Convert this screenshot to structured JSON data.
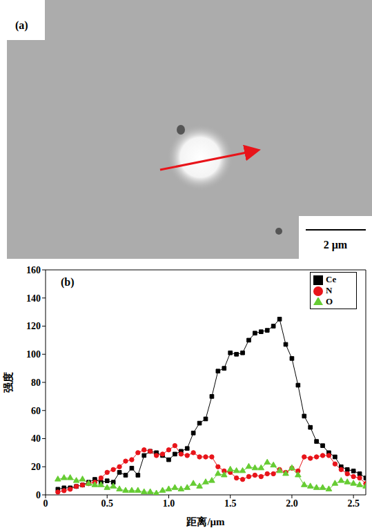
{
  "image": {
    "label": "(a)",
    "scale_bar": "2 μm"
  },
  "chart_data": {
    "type": "line",
    "panel_label": "(b)",
    "x_label": "距离/μm",
    "y_label": "强度",
    "x": [
      0.1,
      0.15,
      0.2,
      0.25,
      0.3,
      0.35,
      0.4,
      0.45,
      0.5,
      0.55,
      0.6,
      0.65,
      0.7,
      0.75,
      0.8,
      0.85,
      0.9,
      0.95,
      1.0,
      1.05,
      1.1,
      1.15,
      1.2,
      1.25,
      1.3,
      1.35,
      1.4,
      1.45,
      1.5,
      1.55,
      1.6,
      1.65,
      1.7,
      1.75,
      1.8,
      1.85,
      1.9,
      1.95,
      2.0,
      2.05,
      2.1,
      2.15,
      2.2,
      2.25,
      2.3,
      2.35,
      2.4,
      2.45,
      2.5,
      2.55,
      2.6
    ],
    "series": [
      {
        "name": "Ce",
        "color": "#000000",
        "marker": "square",
        "values": [
          4,
          5,
          5,
          6,
          7,
          9,
          11,
          9,
          10,
          9,
          16,
          14,
          19,
          14,
          28,
          31,
          30,
          28,
          25,
          29,
          31,
          33,
          44,
          51,
          54,
          70,
          88,
          90,
          101,
          100,
          101,
          110,
          115,
          116,
          117,
          120,
          125,
          107,
          97,
          78,
          56,
          48,
          38,
          35,
          30,
          27,
          20,
          18,
          17,
          15,
          12
        ]
      },
      {
        "name": "N",
        "color": "#e8141a",
        "marker": "circle",
        "values": [
          2,
          3,
          4,
          6,
          7,
          8,
          9,
          12,
          16,
          18,
          20,
          24,
          25,
          30,
          32,
          31,
          28,
          29,
          32,
          35,
          29,
          28,
          30,
          27,
          27,
          27,
          20,
          17,
          16,
          12,
          11,
          13,
          14,
          13,
          15,
          15,
          18,
          16,
          19,
          17,
          27,
          26,
          27,
          28,
          28,
          22,
          18,
          15,
          13,
          12,
          8
        ]
      },
      {
        "name": "O",
        "color": "#66cc33",
        "marker": "triangle",
        "values": [
          11,
          12,
          12,
          10,
          11,
          8,
          7,
          7,
          5,
          6,
          4,
          3,
          3,
          3,
          2,
          2,
          1,
          3,
          4,
          5,
          4,
          5,
          8,
          6,
          9,
          10,
          15,
          14,
          18,
          17,
          17,
          20,
          19,
          19,
          23,
          21,
          17,
          15,
          19,
          14,
          7,
          6,
          5,
          5,
          4,
          8,
          10,
          9,
          8,
          7,
          6
        ]
      }
    ],
    "xlim": [
      0,
      2.6
    ],
    "xticks": [
      0,
      0.5,
      {
        "value": 1,
        "label": "1.0"
      },
      1.5,
      {
        "value": 2,
        "label": "2.0"
      },
      2.5
    ],
    "ylim": [
      0,
      160
    ],
    "yticks": [
      0,
      20,
      40,
      60,
      80,
      100,
      120,
      140,
      160
    ],
    "legend": "upper right",
    "grid": false
  }
}
